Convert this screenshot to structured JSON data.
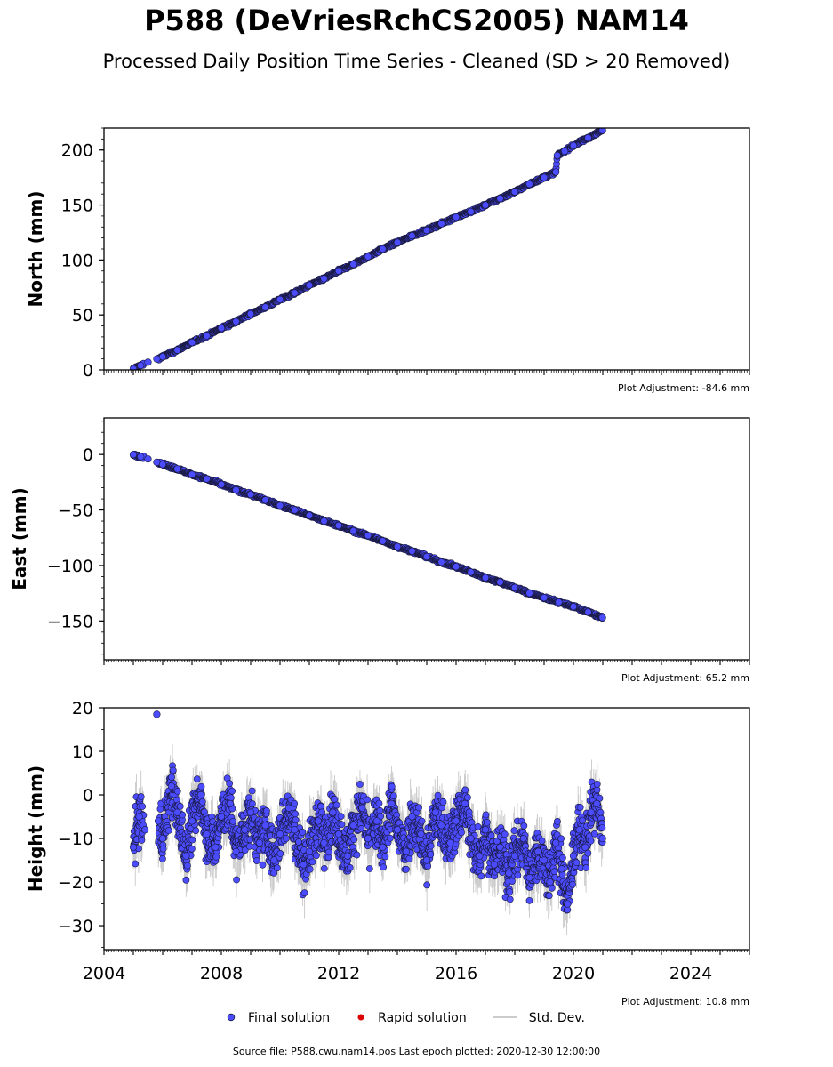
{
  "title": "P588 (DeVriesRchCS2005) NAM14",
  "subtitle": "Processed Daily Position Time Series - Cleaned (SD > 20 Removed)",
  "legend": {
    "final": "Final solution",
    "rapid": "Rapid solution",
    "std": "Std. Dev."
  },
  "footer": "Source file: P588.cwu.nam14.pos  Last epoch plotted: 2020-12-30 12:00:00",
  "colors": {
    "final": "#4b4bff",
    "final_edge": "#1a1a40",
    "rapid": "#dd0000",
    "std": "#bbbbbb"
  },
  "chart_data": [
    {
      "type": "scatter",
      "ylabel": "North (mm)",
      "adjustment": "Plot Adjustment: -84.6 mm",
      "xlim": [
        2004,
        2026
      ],
      "ylim": [
        0,
        220
      ],
      "yticks": [
        0,
        50,
        100,
        150,
        200
      ],
      "x_tick_labels_shown": false,
      "series": [
        {
          "x": [
            2005.0,
            2005.25,
            2005.5,
            2005.8,
            2006.0,
            2006.5,
            2007.0,
            2007.5,
            2008.0,
            2008.5,
            2009.0,
            2009.5,
            2010.0,
            2010.5,
            2011.0,
            2011.5,
            2012.0,
            2012.5,
            2013.0,
            2013.5,
            2014.0,
            2014.5,
            2015.0,
            2015.5,
            2016.0,
            2016.5,
            2017.0,
            2017.5,
            2018.0,
            2018.5,
            2019.0,
            2019.4,
            2019.45,
            2019.7,
            2020.0,
            2020.5,
            2020.99
          ],
          "y": [
            1,
            4,
            7,
            10,
            12,
            18,
            25,
            31,
            38,
            44,
            51,
            57,
            64,
            70,
            77,
            83,
            90,
            96,
            103,
            110,
            116,
            122,
            127,
            133,
            139,
            144,
            150,
            156,
            162,
            169,
            175,
            180,
            195,
            199,
            204,
            211,
            218
          ]
        }
      ]
    },
    {
      "type": "scatter",
      "ylabel": "East (mm)",
      "adjustment": "Plot Adjustment: 65.2 mm",
      "xlim": [
        2004,
        2026
      ],
      "ylim": [
        -185,
        33
      ],
      "yticks": [
        0,
        -50,
        -100,
        -150
      ],
      "ytick_labels": [
        "0",
        "−50",
        "−100",
        "−150"
      ],
      "x_tick_labels_shown": false,
      "series": [
        {
          "x": [
            2005.0,
            2005.25,
            2005.5,
            2005.8,
            2006.0,
            2006.5,
            2007.0,
            2007.5,
            2008.0,
            2008.5,
            2009.0,
            2009.5,
            2010.0,
            2010.5,
            2011.0,
            2011.5,
            2012.0,
            2012.5,
            2013.0,
            2013.5,
            2014.0,
            2014.5,
            2015.0,
            2015.5,
            2016.0,
            2016.5,
            2017.0,
            2017.5,
            2018.0,
            2018.5,
            2019.0,
            2019.5,
            2020.0,
            2020.5,
            2020.99
          ],
          "y": [
            0,
            -2,
            -4,
            -7,
            -9,
            -13,
            -18,
            -22,
            -27,
            -32,
            -36,
            -41,
            -46,
            -50,
            -55,
            -60,
            -64,
            -69,
            -73,
            -78,
            -83,
            -87,
            -92,
            -97,
            -101,
            -106,
            -111,
            -115,
            -120,
            -125,
            -129,
            -133,
            -137,
            -142,
            -147
          ]
        }
      ]
    },
    {
      "type": "scatter",
      "ylabel": "Height (mm)",
      "adjustment": "Plot Adjustment: 10.8 mm",
      "xlim": [
        2004,
        2026
      ],
      "ylim": [
        -35.5,
        20
      ],
      "yticks": [
        20,
        10,
        0,
        -10,
        -20,
        -30
      ],
      "ytick_labels": [
        "20",
        "10",
        "0",
        "−10",
        "−20",
        "−30"
      ],
      "xticks": [
        2004,
        2008,
        2012,
        2016,
        2020,
        2024
      ],
      "x_tick_labels_shown": true,
      "series": [
        {
          "x": [
            2005.0,
            2005.2,
            2005.4,
            2005.8,
            2005.85,
            2006.0,
            2006.3,
            2006.5,
            2006.8,
            2007.0,
            2007.3,
            2007.5,
            2007.8,
            2008.0,
            2008.3,
            2008.5,
            2008.8,
            2009.0,
            2009.3,
            2009.5,
            2009.8,
            2010.0,
            2010.3,
            2010.5,
            2010.8,
            2011.0,
            2011.3,
            2011.5,
            2011.8,
            2012.0,
            2012.3,
            2012.5,
            2012.8,
            2013.0,
            2013.3,
            2013.5,
            2013.8,
            2014.0,
            2014.3,
            2014.5,
            2014.8,
            2015.0,
            2015.3,
            2015.5,
            2015.8,
            2016.0,
            2016.3,
            2016.5,
            2016.8,
            2017.0,
            2017.3,
            2017.5,
            2017.8,
            2018.0,
            2018.3,
            2018.5,
            2018.8,
            2019.0,
            2019.2,
            2019.4,
            2019.6,
            2019.8,
            2020.0,
            2020.2,
            2020.4,
            2020.6,
            2020.8,
            2020.99
          ],
          "y": [
            -12,
            -5,
            -8,
            18.5,
            -6,
            -10,
            2,
            -4,
            -14,
            -6,
            0,
            -9,
            -12,
            -5,
            -2,
            -13,
            -8,
            -4,
            -11,
            -7,
            -15,
            -9,
            -3,
            -8,
            -16,
            -13,
            -6,
            -11,
            -4,
            -9,
            -14,
            -7,
            -3,
            -10,
            -6,
            -12,
            -2,
            -8,
            -13,
            -5,
            -9,
            -15,
            -4,
            -7,
            -11,
            -6,
            -2,
            -10,
            -14,
            -8,
            -16,
            -12,
            -18,
            -14,
            -10,
            -19,
            -13,
            -15,
            -20,
            -11,
            -17,
            -25,
            -14,
            -8,
            -12,
            -4,
            -2,
            -10
          ]
        }
      ]
    }
  ]
}
